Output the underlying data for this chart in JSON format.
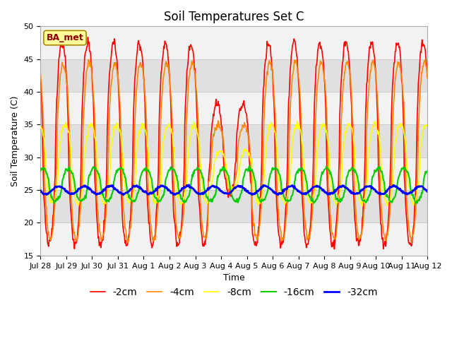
{
  "title": "Soil Temperatures Set C",
  "xlabel": "Time",
  "ylabel": "Soil Temperature (C)",
  "ylim": [
    15,
    50
  ],
  "legend_label": "BA_met",
  "xtick_labels": [
    "Jul 28",
    "Jul 29",
    "Jul 30",
    "Jul 31",
    "Aug 1",
    "Aug 2",
    "Aug 3",
    "Aug 4",
    "Aug 5",
    "Aug 6",
    "Aug 7",
    "Aug 8",
    "Aug 9",
    "Aug 10",
    "Aug 11",
    "Aug 12"
  ],
  "series_labels": [
    "-2cm",
    "-4cm",
    "-8cm",
    "-16cm",
    "-32cm"
  ],
  "series_colors": [
    "#ff0000",
    "#ff8800",
    "#ffff00",
    "#00cc00",
    "#0000ff"
  ],
  "series_linewidths": [
    1.2,
    1.2,
    1.2,
    1.5,
    2.0
  ],
  "background_color": "#ffffff",
  "plot_bg_color": "#e0e0e0",
  "title_fontsize": 12,
  "axis_label_fontsize": 9,
  "tick_fontsize": 8,
  "legend_fontsize": 10,
  "white_band_alpha": 0.6
}
